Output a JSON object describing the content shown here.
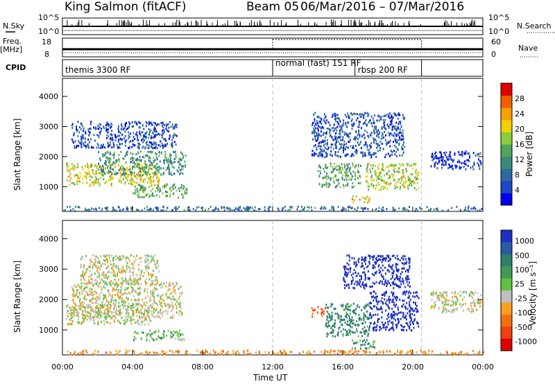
{
  "header": {
    "station": "King Salmon (fitACF)",
    "beam": "Beam 05",
    "dates": "06/Mar/2016 – 07/Mar/2016"
  },
  "params_panel": {
    "nsky_label": "N.Sky",
    "nsky_ticks": [
      "10^5",
      "10^0"
    ],
    "nsearch_label": "N.Search",
    "nsearch_ticks": [
      "10^5",
      "10^0"
    ],
    "freq_label_top": "Freq.",
    "freq_label_units": "[MHz]",
    "freq_ticks": [
      "18",
      "8"
    ],
    "nave_label": "Nave",
    "nave_ticks": [
      "60",
      "0"
    ],
    "cpid_label": "CPID",
    "cpid_segments": [
      {
        "label": "themis 3300 RF",
        "start_hour": 0,
        "end_hour": 12
      },
      {
        "label": "normal (fast) 151 RF",
        "start_hour": 12,
        "end_hour": 20.5
      },
      {
        "label": "rbsp 200 RF",
        "start_hour": 16.7,
        "end_hour": 20.5
      }
    ]
  },
  "colors": {
    "frame": "#000000",
    "grid_dash": "#bbbbbb",
    "power_scale": [
      "#0000ee",
      "#1e46c8",
      "#2b6a9e",
      "#3a8a78",
      "#4fa55a",
      "#8ccc3c",
      "#f0d000",
      "#f5a000",
      "#f06000",
      "#e00000"
    ],
    "velocity_scale": [
      "#1c2fc0",
      "#2a5aa8",
      "#2e7f6a",
      "#3f9a55",
      "#5dc240",
      "#bfbfbf",
      "#f7a020",
      "#f07010",
      "#ee4010",
      "#dd0000"
    ]
  },
  "chart_data": [
    {
      "type": "heatmap",
      "panel": "power",
      "xlabel": "",
      "ylabel": "Slant Range [km]",
      "xlim_hours": [
        0,
        24
      ],
      "ylim_km": [
        180,
        4600
      ],
      "y_ticks": [
        1000,
        2000,
        3000,
        4000
      ],
      "colorbar": {
        "label": "Power [dB]",
        "range": [
          0,
          32
        ],
        "ticks": [
          4,
          8,
          12,
          16,
          20,
          24,
          28
        ]
      },
      "vertical_markers_hours": [
        12,
        20.5
      ],
      "regions": [
        {
          "t_start": 0.2,
          "t_end": 5.5,
          "r_start": 1050,
          "r_end": 1800,
          "value": 20
        },
        {
          "t_start": 2.0,
          "t_end": 7.0,
          "r_start": 1400,
          "r_end": 2200,
          "value": 12
        },
        {
          "t_start": 0.5,
          "t_end": 6.5,
          "r_start": 2300,
          "r_end": 3200,
          "value": 6
        },
        {
          "t_start": 4.0,
          "t_end": 7.2,
          "r_start": 650,
          "r_end": 1100,
          "value": 14
        },
        {
          "t_start": 14.5,
          "t_end": 17.0,
          "r_start": 1000,
          "r_end": 1800,
          "value": 14
        },
        {
          "t_start": 16.5,
          "t_end": 17.5,
          "r_start": 480,
          "r_end": 700,
          "value": 22
        },
        {
          "t_start": 17.3,
          "t_end": 20.3,
          "r_start": 900,
          "r_end": 1800,
          "value": 18
        },
        {
          "t_start": 14.2,
          "t_end": 19.5,
          "r_start": 2000,
          "r_end": 3500,
          "value": 6
        },
        {
          "t_start": 21.0,
          "t_end": 23.9,
          "r_start": 1600,
          "r_end": 2200,
          "value": 4
        },
        {
          "t_start": 0.0,
          "t_end": 24.0,
          "r_start": 200,
          "r_end": 350,
          "value": 8
        }
      ]
    },
    {
      "type": "heatmap",
      "panel": "velocity",
      "xlabel": "Time UT",
      "ylabel": "Slant Range [km]",
      "xlim_hours": [
        0,
        24
      ],
      "ylim_km": [
        180,
        4600
      ],
      "y_ticks": [
        1000,
        2000,
        3000,
        4000
      ],
      "x_ticks": [
        "00:00",
        "04:00",
        "08:00",
        "12:00",
        "16:00",
        "20:00",
        "00:00"
      ],
      "colorbar": {
        "label": "Velocity [m s⁻¹]",
        "ticks": [
          "1000",
          "500",
          "100",
          "25",
          "-25",
          "-100",
          "-500",
          "-1000"
        ]
      },
      "vertical_markers_hours": [
        12,
        20.5
      ],
      "regions": [
        {
          "t_start": 0.2,
          "t_end": 5.0,
          "r_start": 1200,
          "r_end": 1850,
          "value": 0
        },
        {
          "t_start": 0.5,
          "t_end": 6.8,
          "r_start": 1400,
          "r_end": 2600,
          "value": 0
        },
        {
          "t_start": 1.0,
          "t_end": 5.5,
          "r_start": 2500,
          "r_end": 3500,
          "value": 0
        },
        {
          "t_start": 4.0,
          "t_end": 7.0,
          "r_start": 650,
          "r_end": 1000,
          "value": 60
        },
        {
          "t_start": 14.2,
          "t_end": 15.0,
          "r_start": 1450,
          "r_end": 1800,
          "value": -300
        },
        {
          "t_start": 15.0,
          "t_end": 17.5,
          "r_start": 800,
          "r_end": 1900,
          "value": 150
        },
        {
          "t_start": 16.5,
          "t_end": 17.8,
          "r_start": 400,
          "r_end": 700,
          "value": 120
        },
        {
          "t_start": 17.5,
          "t_end": 20.3,
          "r_start": 1000,
          "r_end": 2300,
          "value": 600
        },
        {
          "t_start": 16.0,
          "t_end": 19.8,
          "r_start": 2400,
          "r_end": 3500,
          "value": 700
        },
        {
          "t_start": 21.0,
          "t_end": 23.9,
          "r_start": 1600,
          "r_end": 2300,
          "value": 0
        },
        {
          "t_start": 0.0,
          "t_end": 24.0,
          "r_start": 200,
          "r_end": 340,
          "value": -100
        }
      ]
    }
  ]
}
